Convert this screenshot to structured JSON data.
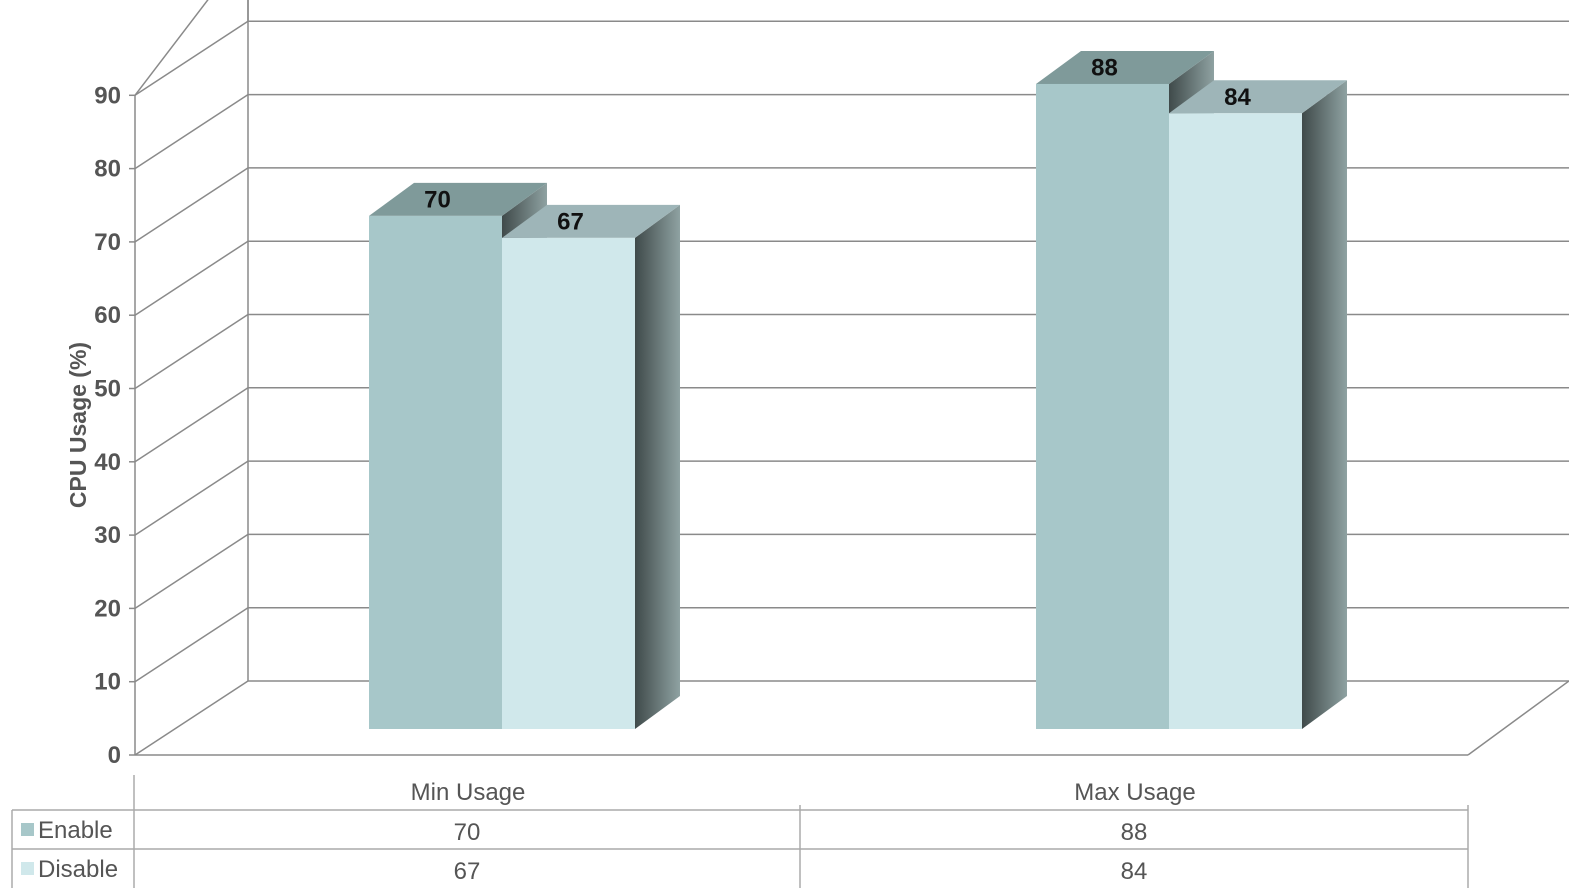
{
  "chart_data": {
    "type": "bar",
    "ylabel": "CPU Usage (%)",
    "ylim": [
      0,
      90
    ],
    "yticks": [
      0,
      10,
      20,
      30,
      40,
      50,
      60,
      70,
      80,
      90
    ],
    "categories": [
      "Min Usage",
      "Max Usage"
    ],
    "series": [
      {
        "name": "Enable",
        "values": [
          70,
          88
        ],
        "color": "#a7c7c9"
      },
      {
        "name": "Disable",
        "values": [
          67,
          84
        ],
        "color": "#d0e8eb"
      }
    ],
    "grid": true,
    "legend": "data-table-below",
    "style": "3d-column"
  }
}
